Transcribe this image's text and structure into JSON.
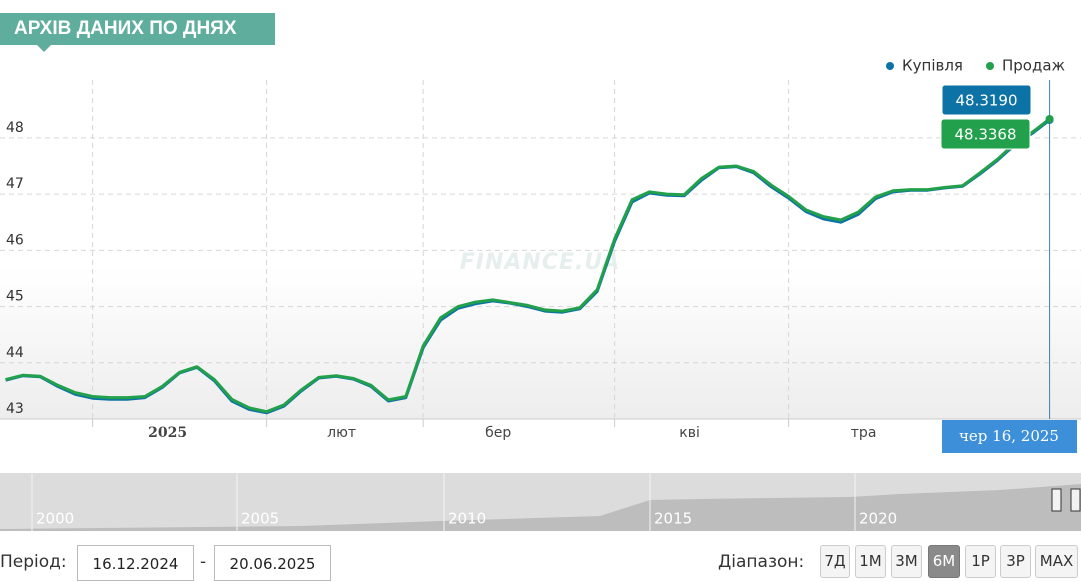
{
  "header": {
    "title": "АРХІВ ДАНИХ ПО ДНЯХ"
  },
  "chart_data": {
    "type": "line",
    "watermark": "FINANCE.UA",
    "categories": [
      null,
      null,
      null,
      null,
      null,
      "2025",
      null,
      null,
      null,
      null,
      null,
      null,
      null,
      null,
      null,
      "лют",
      null,
      null,
      null,
      null,
      null,
      null,
      null,
      null,
      "бер",
      null,
      null,
      null,
      null,
      null,
      null,
      null,
      null,
      null,
      null,
      "кві",
      null,
      null,
      null,
      null,
      null,
      null,
      null,
      null,
      null,
      "тра",
      null,
      null,
      null,
      null,
      null,
      null,
      null,
      null,
      null,
      null,
      null,
      null,
      null,
      null,
      null
    ],
    "series": [
      {
        "name": "Купівля",
        "color": "#0d72a6",
        "values": [
          43.69,
          43.77,
          43.75,
          43.58,
          43.44,
          43.37,
          43.35,
          43.35,
          43.38,
          43.56,
          43.82,
          43.92,
          43.68,
          43.32,
          43.17,
          43.11,
          43.23,
          43.5,
          43.73,
          43.76,
          43.71,
          43.58,
          43.32,
          43.38,
          44.27,
          44.76,
          44.97,
          45.05,
          45.1,
          45.06,
          45.0,
          44.92,
          44.9,
          44.96,
          45.27,
          46.16,
          46.86,
          47.02,
          46.98,
          46.97,
          47.25,
          47.47,
          47.49,
          47.38,
          47.13,
          46.93,
          46.69,
          46.56,
          46.5,
          46.64,
          46.92,
          47.04,
          47.07,
          47.07,
          47.11,
          47.14,
          47.36,
          47.6,
          47.88,
          48.08,
          48.319
        ]
      },
      {
        "name": "Продаж",
        "color": "#22a04b",
        "values": [
          43.7,
          43.78,
          43.76,
          43.6,
          43.47,
          43.4,
          43.38,
          43.38,
          43.4,
          43.58,
          43.83,
          43.93,
          43.7,
          43.35,
          43.2,
          43.13,
          43.25,
          43.52,
          43.74,
          43.77,
          43.72,
          43.6,
          43.34,
          43.4,
          44.3,
          44.8,
          45.0,
          45.08,
          45.12,
          45.07,
          45.02,
          44.94,
          44.92,
          44.98,
          45.3,
          46.2,
          46.9,
          47.04,
          47.0,
          46.99,
          47.28,
          47.48,
          47.5,
          47.4,
          47.16,
          46.96,
          46.72,
          46.6,
          46.54,
          46.68,
          46.95,
          47.06,
          47.08,
          47.08,
          47.12,
          47.15,
          47.38,
          47.62,
          47.9,
          48.1,
          48.3368
        ]
      }
    ],
    "ylim": [
      43,
      49
    ],
    "yticks": [
      43,
      44,
      45,
      46,
      47,
      48
    ],
    "grid": true,
    "legend": "top-right",
    "tooltip": {
      "date": "чер 16, 2025",
      "labels": [
        "48.3190",
        "48.3368"
      ]
    }
  },
  "navigator": {
    "labels": [
      "2000",
      "2005",
      "2010",
      "2015",
      "2020"
    ]
  },
  "controls": {
    "period_label": "Період:",
    "from": "16.12.2024",
    "separator": "-",
    "to": "20.06.2025",
    "range_label": "Діапазон:",
    "ranges": [
      "7Д",
      "1М",
      "3М",
      "6М",
      "1Р",
      "3Р",
      "MAX"
    ],
    "active_range": "6М"
  }
}
